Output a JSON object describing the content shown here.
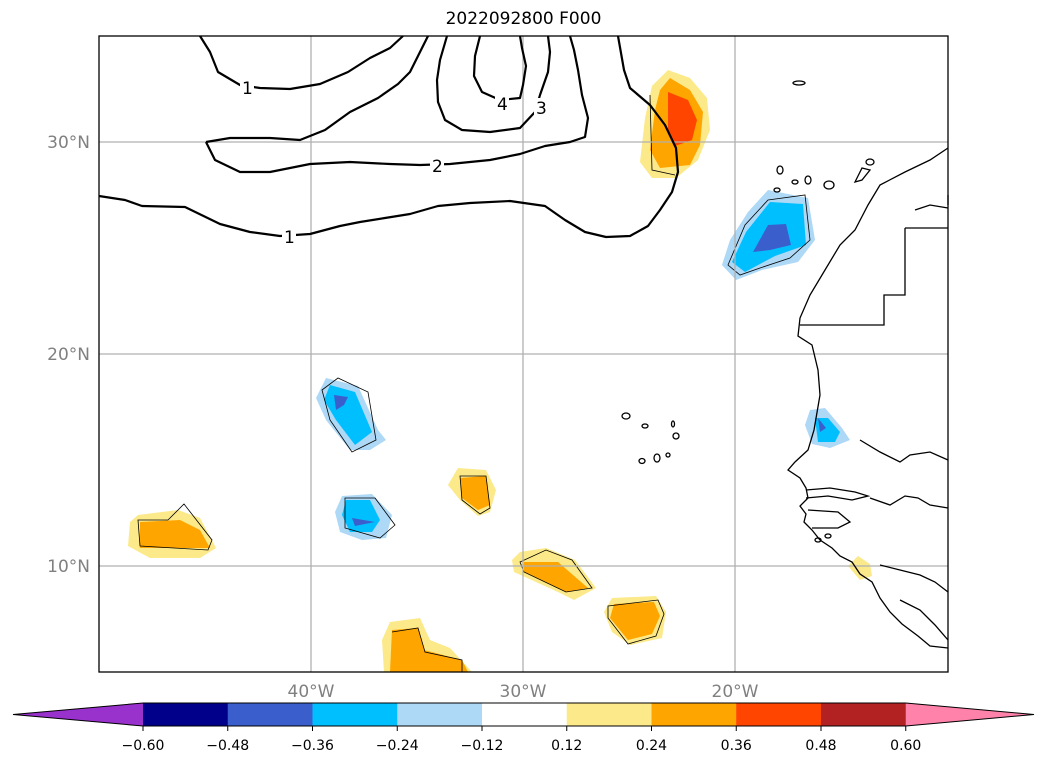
{
  "title": "2022092800 F000",
  "map": {
    "extent": {
      "lon": [
        -50,
        -10
      ],
      "lat": [
        5,
        35
      ]
    },
    "lat_labels": [
      "30°N",
      "20°N",
      "10°N"
    ],
    "lon_labels": [
      "40°W",
      "30°W",
      "20°W"
    ],
    "contour_labels": [
      "1",
      "2",
      "3",
      "4",
      "1"
    ]
  },
  "colorbar": {
    "ticks": [
      "−0.60",
      "−0.48",
      "−0.36",
      "−0.24",
      "−0.12",
      "0.12",
      "0.24",
      "0.36",
      "0.48",
      "0.60"
    ],
    "colors": [
      "#9932cc",
      "#00008b",
      "#3a5fcd",
      "#00bfff",
      "#add8f6",
      "#ffffff",
      "#fce98a",
      "#ffa500",
      "#ff4500",
      "#b22222",
      "#ff82ab"
    ]
  }
}
